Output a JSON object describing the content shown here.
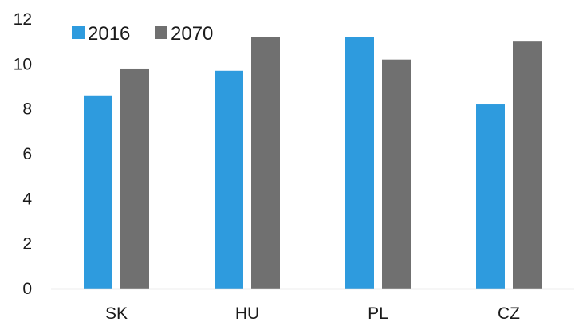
{
  "chart_data": {
    "type": "bar",
    "title": "",
    "xlabel": "",
    "ylabel": "",
    "categories": [
      "SK",
      "HU",
      "PL",
      "CZ"
    ],
    "series": [
      {
        "name": "2016",
        "values": [
          8.6,
          9.7,
          11.2,
          8.2
        ],
        "color": "#2E9BDE"
      },
      {
        "name": "2070",
        "values": [
          9.8,
          11.2,
          10.2,
          11.0
        ],
        "color": "#707070"
      }
    ],
    "ylim": [
      0,
      12
    ],
    "yticks": [
      "0",
      "2",
      "4",
      "6",
      "8",
      "10",
      "12"
    ],
    "grid": false,
    "legend_position": "top-left",
    "axis_color": "#D9D9D9"
  }
}
